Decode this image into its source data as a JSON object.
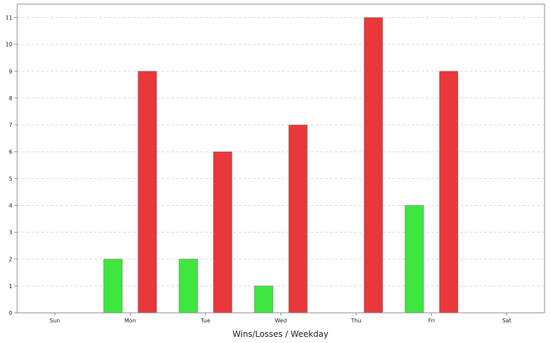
{
  "chart_data": {
    "type": "bar",
    "title": "",
    "xlabel": "Wins/Losses / Weekday",
    "ylabel": "",
    "categories": [
      "Sun",
      "Mon",
      "Tue",
      "Wed",
      "Thu",
      "Fri",
      "Sat"
    ],
    "series": [
      {
        "color": "#3ee63e",
        "values": [
          0,
          2,
          2,
          1,
          0,
          4,
          0
        ]
      },
      {
        "color": "#e8383b",
        "values": [
          0,
          9,
          6,
          7,
          11,
          9,
          0
        ]
      }
    ],
    "ylim": [
      0,
      11.5
    ],
    "yticks": [
      0,
      1,
      2,
      3,
      4,
      5,
      6,
      7,
      8,
      9,
      10,
      11
    ],
    "grid": true,
    "legend": "none"
  }
}
